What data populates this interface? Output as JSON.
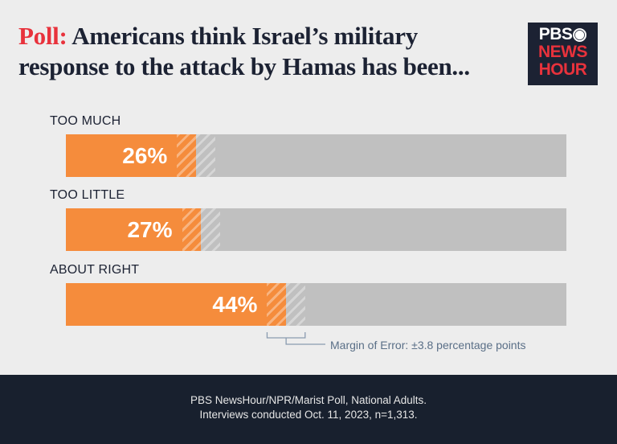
{
  "title": {
    "prefix": "Poll:",
    "text": "Americans think Israel’s military response to the attack by Hamas has been..."
  },
  "logo": {
    "line1": "PBS",
    "line2": "NEWS",
    "line3": "HOUR"
  },
  "colors": {
    "bar": "#f58c3c",
    "track": "#c0c0c0",
    "title_accent": "#e8323c",
    "footer_bg": "#18202e"
  },
  "chart_data": {
    "type": "bar",
    "orientation": "horizontal",
    "categories": [
      "TOO MUCH",
      "TOO LITTLE",
      "ABOUT RIGHT"
    ],
    "values": [
      26,
      27,
      44
    ],
    "labels": [
      "26%",
      "27%",
      "44%"
    ],
    "xlim": [
      0,
      100
    ],
    "margin_of_error": 3.8,
    "annotation": "Margin of Error: ±3.8 percentage points"
  },
  "footer": {
    "line1": "PBS NewsHour/NPR/Marist Poll, National Adults.",
    "line2": "Interviews conducted Oct. 11, 2023, n=1,313."
  }
}
